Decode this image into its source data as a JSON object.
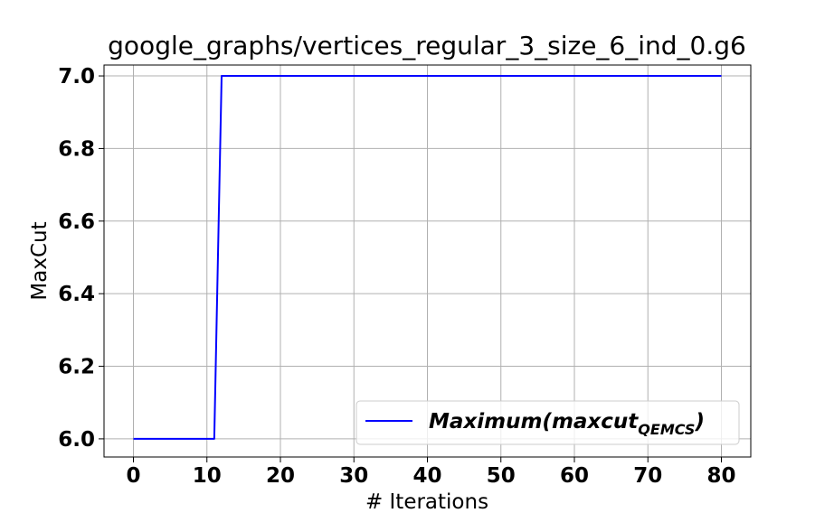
{
  "chart_data": {
    "type": "line",
    "title": "google_graphs/vertices_regular_3_size_6_ind_0.g6",
    "xlabel": "# Iterations",
    "ylabel": "MaxCut",
    "xlim": [
      -4,
      84
    ],
    "ylim": [
      5.95,
      7.03
    ],
    "xticks": [
      0,
      10,
      20,
      30,
      40,
      50,
      60,
      70,
      80
    ],
    "yticks": [
      6.0,
      6.2,
      6.4,
      6.6,
      6.8,
      7.0
    ],
    "ytick_labels": [
      "6.0",
      "6.2",
      "6.4",
      "6.6",
      "6.8",
      "7.0"
    ],
    "grid": true,
    "legend_position": "lower-right",
    "series": [
      {
        "name": "Maximum(maxcut",
        "name_subscript": "QEMCS",
        "name_suffix": ")",
        "color": "#0000ff",
        "x": [
          0,
          11,
          12,
          80
        ],
        "y": [
          6.0,
          6.0,
          7.0,
          7.0
        ]
      }
    ]
  }
}
